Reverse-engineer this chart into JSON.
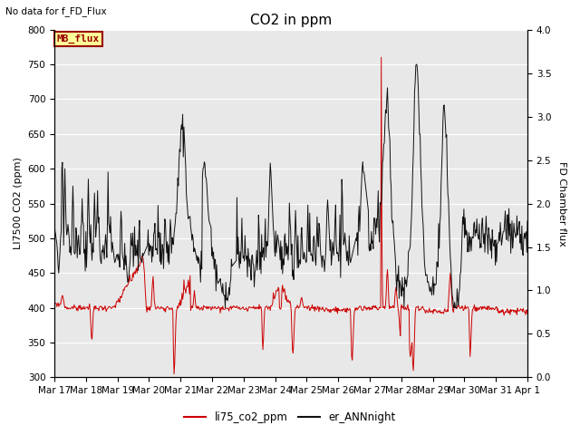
{
  "title": "CO2 in ppm",
  "ylabel_left": "LI7500 CO2 (ppm)",
  "ylabel_right": "FD Chamber flux",
  "note_text": "No data for f_FD_Flux",
  "mb_flux_label": "MB_flux",
  "ylim_left": [
    300,
    800
  ],
  "ylim_right": [
    0.0,
    4.0
  ],
  "yticks_left": [
    300,
    350,
    400,
    450,
    500,
    550,
    600,
    650,
    700,
    750,
    800
  ],
  "yticks_right": [
    0.0,
    0.5,
    1.0,
    1.5,
    2.0,
    2.5,
    3.0,
    3.5,
    4.0
  ],
  "xtick_labels": [
    "Mar 17",
    "Mar 18",
    "Mar 19",
    "Mar 20",
    "Mar 21",
    "Mar 22",
    "Mar 23",
    "Mar 24",
    "Mar 25",
    "Mar 26",
    "Mar 27",
    "Mar 28",
    "Mar 29",
    "Mar 30",
    "Mar 31",
    "Apr 1"
  ],
  "color_red": "#cc0000",
  "color_black": "#111111",
  "plot_bg_color": "#e8e8e8",
  "legend_items": [
    "li75_co2_ppm",
    "er_ANNnight"
  ],
  "title_fontsize": 11,
  "axis_fontsize": 8,
  "tick_fontsize": 7.5
}
